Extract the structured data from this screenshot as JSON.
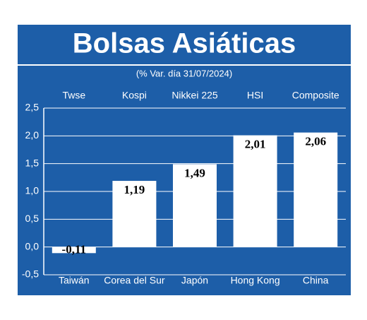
{
  "chart_data": {
    "type": "bar",
    "title": "Bolsas Asiáticas",
    "subtitle": "(% Var. día 31/07/2024)",
    "index_names": [
      "Twse",
      "Kospi",
      "Nikkei 225",
      "HSI",
      "Composite"
    ],
    "categories": [
      "Taiwán",
      "Corea del Sur",
      "Japón",
      "Hong Kong",
      "China"
    ],
    "values": [
      -0.11,
      1.19,
      1.49,
      2.01,
      2.06
    ],
    "value_labels": [
      "-0,11",
      "1,19",
      "1,49",
      "2,01",
      "2,06"
    ],
    "color": "#ffffff",
    "ylim": [
      -0.5,
      2.5
    ],
    "yticks": [
      {
        "value": -0.5,
        "label": "-0,5"
      },
      {
        "value": 0,
        "label": "0,0"
      },
      {
        "value": 0.5,
        "label": "0,5"
      },
      {
        "value": 1,
        "label": "1,0"
      },
      {
        "value": 1.5,
        "label": "1,5"
      },
      {
        "value": 2,
        "label": "2,0"
      },
      {
        "value": 2.5,
        "label": "2,5"
      }
    ],
    "grid": true
  }
}
